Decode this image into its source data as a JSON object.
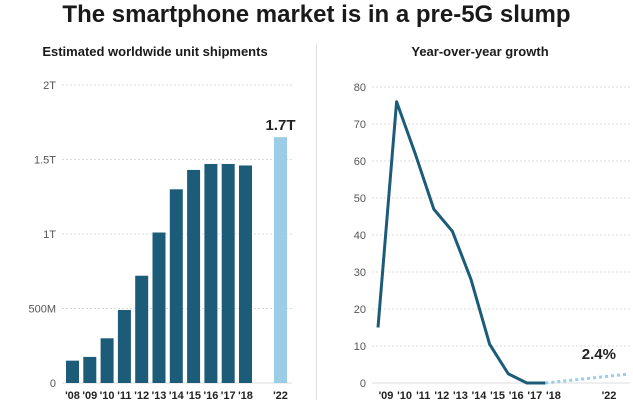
{
  "title": "The smartphone market is in a pre-5G slump",
  "chart_data": [
    {
      "type": "bar",
      "title": "Estimated worldwide unit shipments",
      "categories": [
        "'08",
        "'09",
        "'10",
        "'11",
        "'12",
        "'13",
        "'14",
        "'15",
        "'16",
        "'17",
        "'18",
        "'22"
      ],
      "values": [
        150000000,
        175000000,
        300000000,
        490000000,
        720000000,
        1010000000,
        1300000000,
        1430000000,
        1470000000,
        1470000000,
        1460000000,
        1650000000
      ],
      "forecast": [
        false,
        false,
        false,
        false,
        false,
        false,
        false,
        false,
        false,
        false,
        false,
        true
      ],
      "ylim": [
        0,
        2000000000
      ],
      "y_ticks": [
        {
          "value": 0,
          "label": "0"
        },
        {
          "value": 500000000,
          "label": "500M"
        },
        {
          "value": 1000000000,
          "label": "1T"
        },
        {
          "value": 1500000000,
          "label": "1.5T"
        },
        {
          "value": 2000000000,
          "label": "2T"
        }
      ],
      "callout": {
        "category": "'22",
        "label": "1.7T"
      },
      "colors": {
        "actual": "#1d5c79",
        "forecast": "#9ccde6"
      },
      "grid": true
    },
    {
      "type": "line",
      "title": "Year-over-year growth",
      "x": [
        "'09",
        "'10",
        "'11",
        "'12",
        "'13",
        "'14",
        "'15",
        "'16",
        "'17",
        "'18",
        "'22"
      ],
      "values": [
        15,
        76,
        62,
        47,
        41,
        28,
        10.5,
        2.5,
        0,
        0,
        2.4
      ],
      "forecast_from_index": 9,
      "ylim": [
        0,
        80
      ],
      "y_ticks": [
        0,
        10,
        20,
        30,
        40,
        50,
        60,
        70,
        80
      ],
      "callout": {
        "x": "'22",
        "label": "2.4%"
      },
      "colors": {
        "actual": "#1d5c79",
        "forecast": "#9ccde6"
      },
      "grid": true
    }
  ]
}
